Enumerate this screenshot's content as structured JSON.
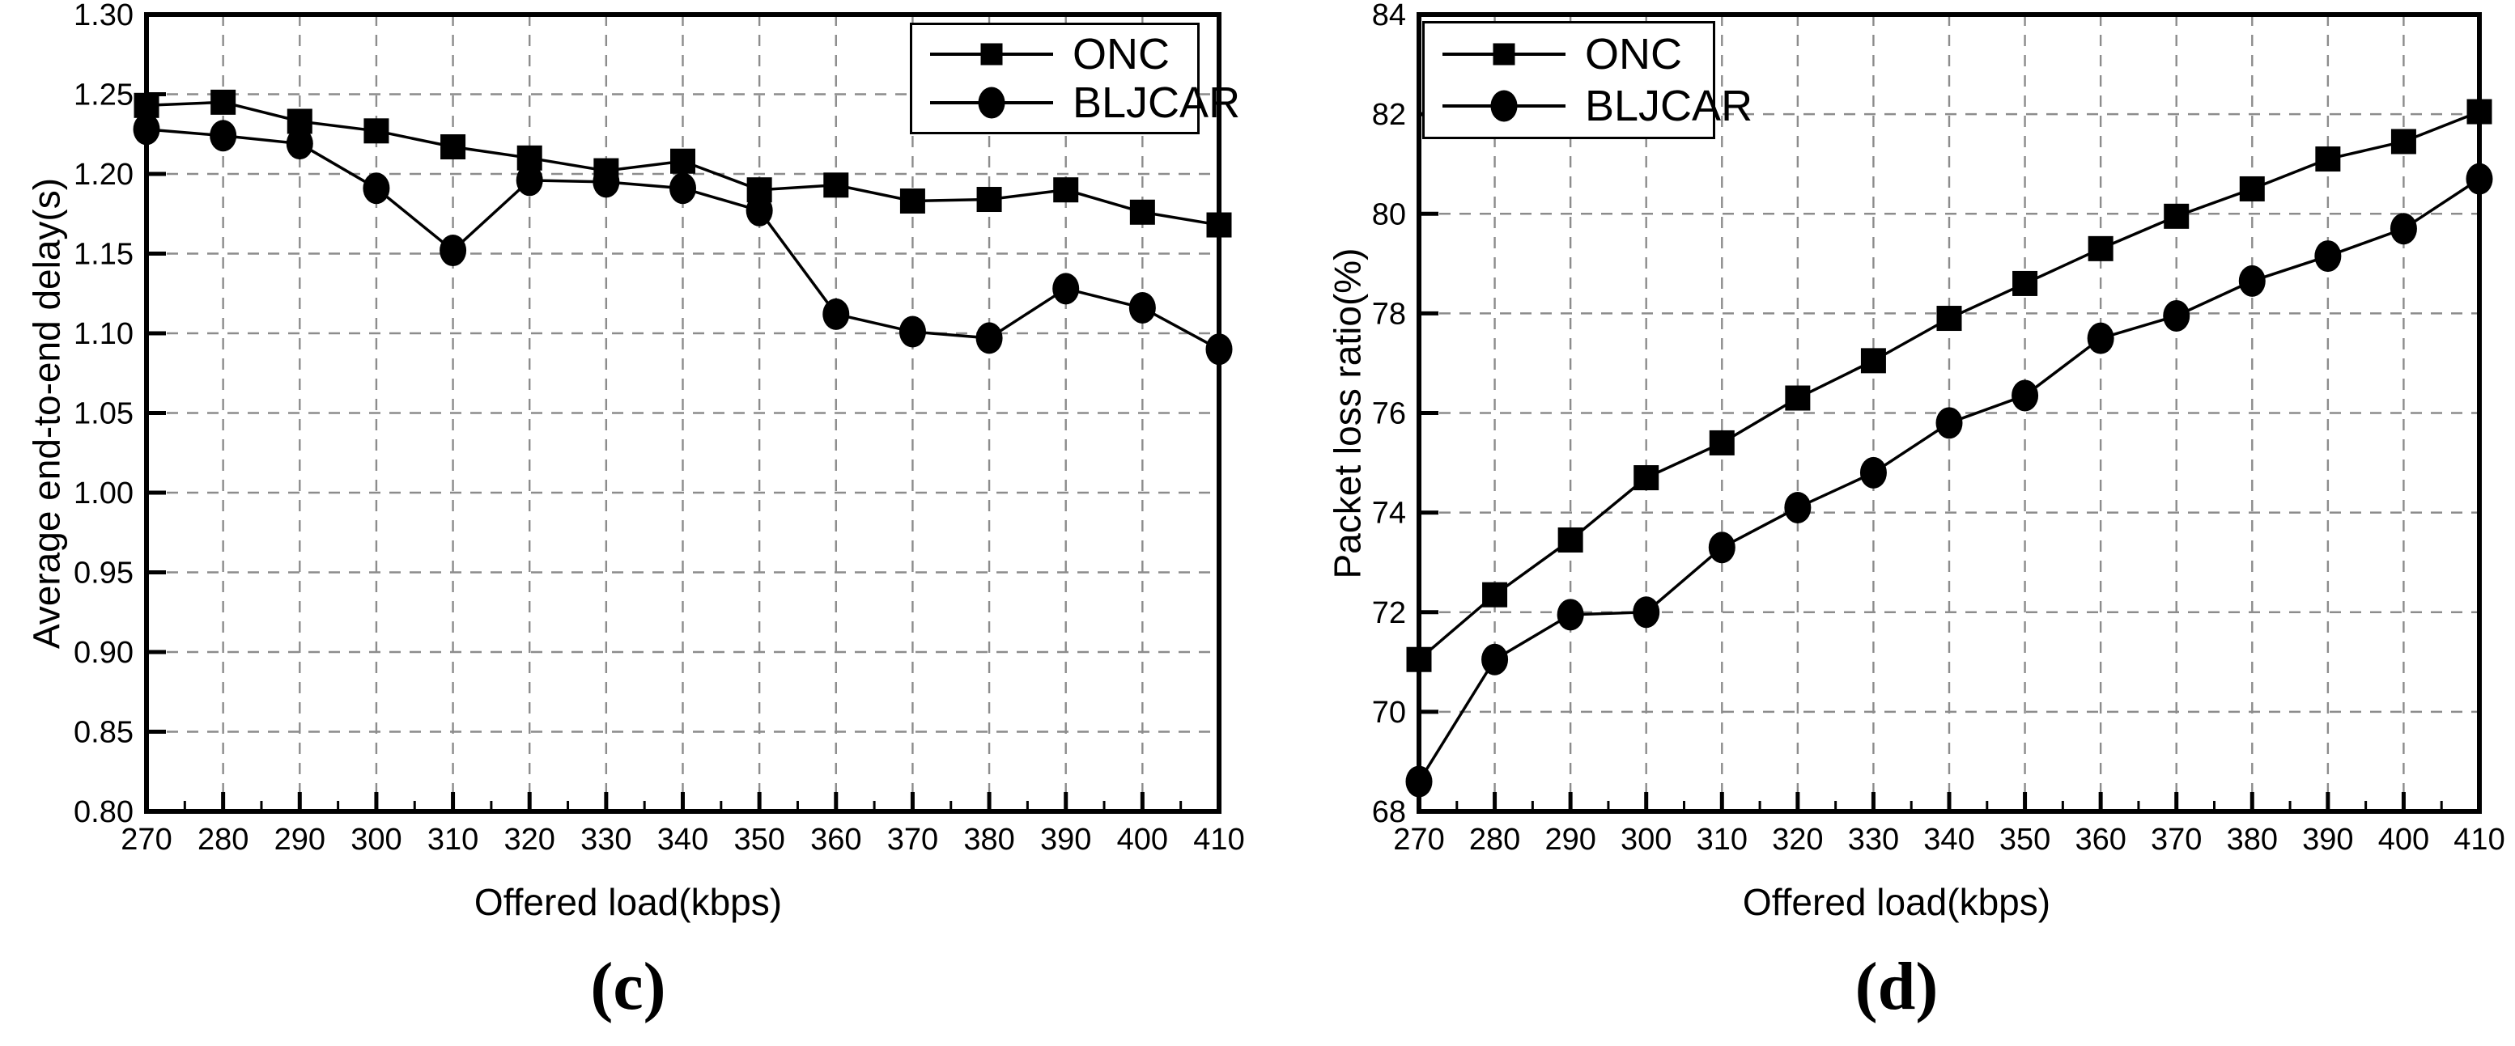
{
  "chart_data": [
    {
      "type": "line",
      "caption": "(c)",
      "xlabel": "Offered load(kbps)",
      "ylabel": "Average end-to-end delay(s)",
      "x": [
        270,
        280,
        290,
        300,
        310,
        320,
        330,
        340,
        350,
        360,
        370,
        380,
        390,
        400,
        410
      ],
      "xlim": [
        270,
        410
      ],
      "ylim": [
        0.8,
        1.3
      ],
      "ytick_step": 0.05,
      "ytick_decimals": 2,
      "grid": true,
      "legend_position": "top-right",
      "line_color": "#000000",
      "series": [
        {
          "name": "ONC",
          "marker": "square",
          "values": [
            1.243,
            1.245,
            1.233,
            1.227,
            1.217,
            1.21,
            1.202,
            1.208,
            1.19,
            1.193,
            1.183,
            1.184,
            1.19,
            1.176,
            1.168
          ]
        },
        {
          "name": "BLJCAR",
          "marker": "circle",
          "values": [
            1.228,
            1.224,
            1.219,
            1.191,
            1.152,
            1.196,
            1.195,
            1.191,
            1.177,
            1.112,
            1.101,
            1.097,
            1.128,
            1.116,
            1.09
          ]
        }
      ]
    },
    {
      "type": "line",
      "caption": "(d)",
      "xlabel": "Offered load(kbps)",
      "ylabel": "Packet loss ratio(%)",
      "x": [
        270,
        280,
        290,
        300,
        310,
        320,
        330,
        340,
        350,
        360,
        370,
        380,
        390,
        400,
        410
      ],
      "xlim": [
        270,
        410
      ],
      "ylim": [
        68,
        84
      ],
      "ytick_step": 2,
      "ytick_decimals": 0,
      "grid": true,
      "legend_position": "top-left",
      "line_color": "#000000",
      "series": [
        {
          "name": "ONC",
          "marker": "square",
          "values": [
            71.05,
            72.35,
            73.45,
            74.7,
            75.4,
            76.3,
            77.05,
            77.9,
            78.6,
            79.3,
            79.95,
            80.5,
            81.1,
            81.45,
            82.05
          ]
        },
        {
          "name": "BLJCAR",
          "marker": "circle",
          "values": [
            68.6,
            71.05,
            71.95,
            72.0,
            73.3,
            74.1,
            74.8,
            75.8,
            76.35,
            77.5,
            77.95,
            78.65,
            79.15,
            79.7,
            80.7
          ]
        }
      ]
    }
  ]
}
